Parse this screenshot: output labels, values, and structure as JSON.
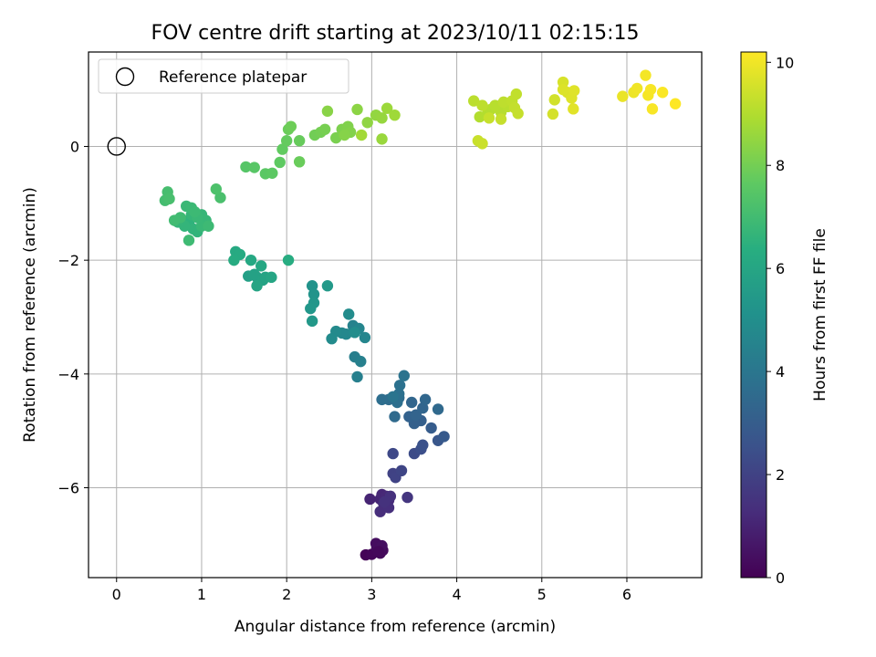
{
  "chart_data": {
    "type": "scatter",
    "title": "FOV centre drift starting at 2023/10/11 02:15:15",
    "xlabel": "Angular distance from reference (arcmin)",
    "ylabel": "Rotation from reference (arcmin)",
    "xlim": [
      -0.33,
      6.88
    ],
    "ylim": [
      -7.58,
      1.66
    ],
    "x_ticks": [
      0,
      1,
      2,
      3,
      4,
      5,
      6
    ],
    "y_ticks": [
      -6,
      -4,
      -2,
      0
    ],
    "grid": true,
    "legend": {
      "placement": "top-left",
      "entries": [
        "Reference platepar"
      ]
    },
    "reference_point": {
      "x": 0,
      "y": 0,
      "label": "Reference platepar"
    },
    "colorbar": {
      "label": "Hours from first FF file",
      "range": [
        0,
        10.2
      ],
      "ticks": [
        0,
        2,
        4,
        6,
        8,
        10
      ],
      "colormap": "viridis"
    },
    "series": [
      {
        "points": [
          [
            2.93,
            -7.18,
            0.1
          ],
          [
            3.0,
            -7.17,
            0.15
          ],
          [
            3.1,
            -7.15,
            0.2
          ],
          [
            3.13,
            -7.1,
            0.25
          ],
          [
            3.06,
            -7.05,
            0.3
          ],
          [
            3.05,
            -6.98,
            0.35
          ],
          [
            3.12,
            -7.02,
            0.4
          ],
          [
            3.08,
            -7.12,
            0.2
          ],
          [
            2.98,
            -6.2,
            1.0
          ],
          [
            3.1,
            -6.2,
            1.05
          ],
          [
            3.12,
            -6.12,
            1.1
          ],
          [
            3.17,
            -6.15,
            1.15
          ],
          [
            3.2,
            -6.22,
            1.2
          ],
          [
            3.14,
            -6.28,
            1.25
          ],
          [
            3.1,
            -6.42,
            1.3
          ],
          [
            3.2,
            -6.35,
            1.35
          ],
          [
            3.22,
            -6.15,
            1.4
          ],
          [
            3.15,
            -6.25,
            1.45
          ],
          [
            3.42,
            -6.17,
            1.6
          ],
          [
            3.25,
            -5.75,
            2.0
          ],
          [
            3.28,
            -5.82,
            2.05
          ],
          [
            3.35,
            -5.7,
            2.1
          ],
          [
            3.25,
            -5.4,
            2.2
          ],
          [
            3.5,
            -5.4,
            2.35
          ],
          [
            3.58,
            -5.32,
            2.45
          ],
          [
            3.6,
            -5.25,
            2.55
          ],
          [
            3.78,
            -5.17,
            2.75
          ],
          [
            3.85,
            -5.1,
            2.85
          ],
          [
            3.7,
            -4.95,
            2.95
          ],
          [
            3.58,
            -4.82,
            3.05
          ],
          [
            3.5,
            -4.87,
            3.1
          ],
          [
            3.44,
            -4.75,
            3.2
          ],
          [
            3.52,
            -4.72,
            3.25
          ],
          [
            3.6,
            -4.6,
            3.3
          ],
          [
            3.47,
            -4.5,
            3.35
          ],
          [
            3.63,
            -4.45,
            3.4
          ],
          [
            3.78,
            -4.62,
            3.45
          ],
          [
            3.27,
            -4.75,
            3.5
          ],
          [
            3.32,
            -4.42,
            3.55
          ],
          [
            3.2,
            -4.45,
            3.6
          ],
          [
            3.12,
            -4.45,
            3.65
          ],
          [
            3.3,
            -4.5,
            3.7
          ],
          [
            3.32,
            -4.35,
            3.75
          ],
          [
            3.33,
            -4.2,
            3.8
          ],
          [
            3.38,
            -4.03,
            3.85
          ],
          [
            3.25,
            -4.4,
            3.9
          ],
          [
            2.8,
            -3.7,
            4.3
          ],
          [
            2.83,
            -4.05,
            4.35
          ],
          [
            2.87,
            -3.78,
            4.4
          ],
          [
            2.78,
            -3.15,
            4.5
          ],
          [
            2.85,
            -3.2,
            4.6
          ],
          [
            2.92,
            -3.36,
            4.65
          ],
          [
            2.7,
            -3.3,
            4.7
          ],
          [
            2.65,
            -3.28,
            4.75
          ],
          [
            2.58,
            -3.25,
            4.8
          ],
          [
            2.53,
            -3.38,
            4.85
          ],
          [
            2.73,
            -2.95,
            4.9
          ],
          [
            2.8,
            -3.27,
            4.95
          ],
          [
            2.3,
            -2.45,
            5.2
          ],
          [
            2.32,
            -2.6,
            5.25
          ],
          [
            2.32,
            -2.75,
            5.3
          ],
          [
            2.28,
            -2.85,
            5.35
          ],
          [
            2.3,
            -3.07,
            5.4
          ],
          [
            2.48,
            -2.45,
            5.45
          ],
          [
            1.55,
            -2.28,
            5.7
          ],
          [
            1.65,
            -2.3,
            5.75
          ],
          [
            1.62,
            -2.25,
            5.8
          ],
          [
            1.72,
            -2.35,
            5.85
          ],
          [
            1.75,
            -2.3,
            5.9
          ],
          [
            1.65,
            -2.45,
            5.95
          ],
          [
            1.82,
            -2.3,
            6.0
          ],
          [
            1.7,
            -2.1,
            6.05
          ],
          [
            1.58,
            -2.0,
            6.1
          ],
          [
            1.4,
            -1.85,
            6.15
          ],
          [
            1.45,
            -1.9,
            6.2
          ],
          [
            1.38,
            -2.0,
            6.25
          ],
          [
            2.02,
            -2.0,
            6.3
          ],
          [
            0.78,
            -1.3,
            6.5
          ],
          [
            0.85,
            -1.35,
            6.55
          ],
          [
            0.9,
            -1.45,
            6.6
          ],
          [
            0.95,
            -1.5,
            6.62
          ],
          [
            0.8,
            -1.4,
            6.65
          ],
          [
            0.72,
            -1.33,
            6.68
          ],
          [
            0.88,
            -1.2,
            6.7
          ],
          [
            1.0,
            -1.2,
            6.72
          ],
          [
            1.05,
            -1.3,
            6.75
          ],
          [
            1.0,
            -1.4,
            6.78
          ],
          [
            0.95,
            -1.25,
            6.8
          ],
          [
            0.82,
            -1.05,
            6.82
          ],
          [
            0.88,
            -1.08,
            6.85
          ],
          [
            0.92,
            -1.15,
            6.88
          ],
          [
            1.08,
            -1.4,
            6.9
          ],
          [
            0.85,
            -1.65,
            6.92
          ],
          [
            0.75,
            -1.25,
            6.95
          ],
          [
            0.68,
            -1.3,
            6.98
          ],
          [
            0.57,
            -0.95,
            7.05
          ],
          [
            0.6,
            -0.8,
            7.1
          ],
          [
            0.62,
            -0.92,
            7.15
          ],
          [
            1.22,
            -0.9,
            7.2
          ],
          [
            1.17,
            -0.75,
            7.25
          ],
          [
            1.52,
            -0.36,
            7.45
          ],
          [
            1.62,
            -0.37,
            7.5
          ],
          [
            1.75,
            -0.48,
            7.55
          ],
          [
            1.83,
            -0.47,
            7.6
          ],
          [
            1.92,
            -0.28,
            7.65
          ],
          [
            1.95,
            -0.05,
            7.7
          ],
          [
            2.0,
            0.1,
            7.75
          ],
          [
            2.15,
            0.1,
            7.8
          ],
          [
            2.15,
            -0.27,
            7.82
          ],
          [
            2.02,
            0.3,
            7.85
          ],
          [
            2.05,
            0.35,
            7.9
          ],
          [
            2.33,
            0.2,
            7.95
          ],
          [
            2.4,
            0.25,
            8.0
          ],
          [
            2.45,
            0.3,
            8.05
          ],
          [
            2.58,
            0.15,
            8.1
          ],
          [
            2.65,
            0.3,
            8.15
          ],
          [
            2.72,
            0.35,
            8.2
          ],
          [
            2.75,
            0.25,
            8.25
          ],
          [
            2.68,
            0.2,
            8.3
          ],
          [
            2.48,
            0.62,
            8.35
          ],
          [
            2.83,
            0.65,
            8.4
          ],
          [
            2.95,
            0.42,
            8.45
          ],
          [
            3.05,
            0.55,
            8.5
          ],
          [
            3.12,
            0.5,
            8.55
          ],
          [
            3.12,
            0.13,
            8.6
          ],
          [
            3.18,
            0.67,
            8.65
          ],
          [
            3.27,
            0.55,
            8.7
          ],
          [
            2.88,
            0.2,
            8.75
          ],
          [
            4.27,
            0.52,
            9.0
          ],
          [
            4.35,
            0.55,
            9.02
          ],
          [
            4.4,
            0.65,
            9.05
          ],
          [
            4.52,
            0.6,
            9.08
          ],
          [
            4.45,
            0.72,
            9.1
          ],
          [
            4.6,
            0.7,
            9.12
          ],
          [
            4.2,
            0.8,
            9.15
          ],
          [
            4.3,
            0.72,
            9.18
          ],
          [
            4.55,
            0.78,
            9.2
          ],
          [
            4.65,
            0.8,
            9.22
          ],
          [
            4.7,
            0.92,
            9.25
          ],
          [
            4.68,
            0.68,
            9.28
          ],
          [
            4.72,
            0.58,
            9.3
          ],
          [
            4.52,
            0.48,
            9.32
          ],
          [
            4.38,
            0.5,
            9.34
          ],
          [
            4.25,
            0.1,
            9.36
          ],
          [
            4.3,
            0.05,
            9.38
          ],
          [
            5.15,
            0.82,
            9.5
          ],
          [
            5.13,
            0.57,
            9.55
          ],
          [
            5.25,
            1.13,
            9.6
          ],
          [
            5.3,
            0.95,
            9.65
          ],
          [
            5.25,
            1.0,
            9.68
          ],
          [
            5.35,
            0.85,
            9.7
          ],
          [
            5.38,
            0.98,
            9.72
          ],
          [
            5.37,
            0.66,
            9.75
          ],
          [
            5.95,
            0.88,
            9.9
          ],
          [
            6.08,
            0.95,
            9.95
          ],
          [
            6.12,
            1.02,
            10.0
          ],
          [
            6.22,
            1.25,
            10.05
          ],
          [
            6.25,
            0.9,
            10.08
          ],
          [
            6.28,
            1.0,
            10.1
          ],
          [
            6.3,
            0.66,
            10.12
          ],
          [
            6.42,
            0.95,
            10.15
          ],
          [
            6.57,
            0.75,
            10.2
          ]
        ]
      }
    ]
  }
}
